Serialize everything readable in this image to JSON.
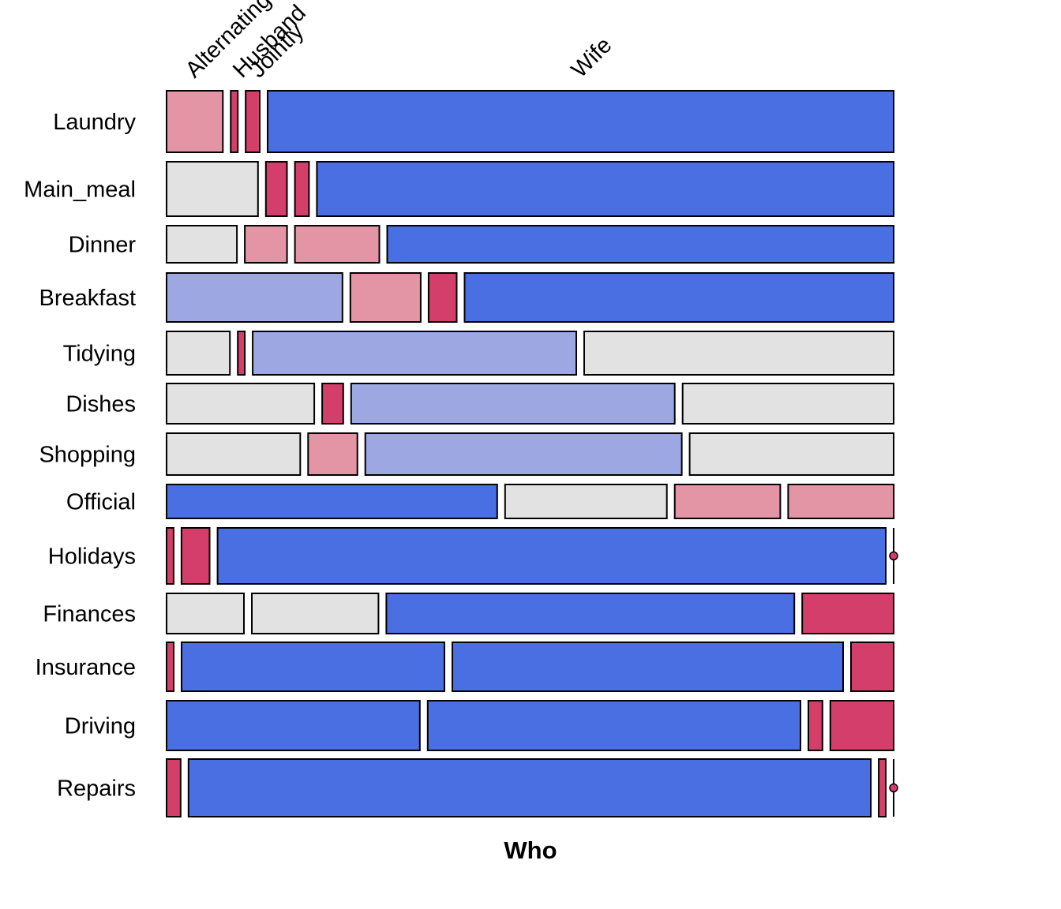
{
  "chart_data": {
    "type": "mosaic",
    "xlabel": "Who",
    "ylabel": "",
    "title": "",
    "columns": [
      "Alternating",
      "Husband",
      "Jointly",
      "Wife"
    ],
    "rows": [
      "Laundry",
      "Main_meal",
      "Dinner",
      "Breakfast",
      "Tidying",
      "Dishes",
      "Shopping",
      "Official",
      "Holidays",
      "Finances",
      "Insurance",
      "Driving",
      "Repairs"
    ],
    "proportions": {
      "Laundry": [
        0.08,
        0.01,
        0.02,
        0.89
      ],
      "Main_meal": [
        0.13,
        0.03,
        0.02,
        0.82
      ],
      "Dinner": [
        0.1,
        0.06,
        0.12,
        0.72
      ],
      "Breakfast": [
        0.25,
        0.1,
        0.04,
        0.61
      ],
      "Tidying": [
        0.09,
        0.01,
        0.46,
        0.44
      ],
      "Dishes": [
        0.21,
        0.03,
        0.46,
        0.3
      ],
      "Shopping": [
        0.19,
        0.07,
        0.45,
        0.29
      ],
      "Official": [
        0.47,
        0.23,
        0.15,
        0.15
      ],
      "Holidays": [
        0.01,
        0.04,
        0.95,
        0.0
      ],
      "Finances": [
        0.11,
        0.18,
        0.58,
        0.13
      ],
      "Insurance": [
        0.01,
        0.37,
        0.55,
        0.06
      ],
      "Driving": [
        0.36,
        0.53,
        0.02,
        0.09
      ],
      "Repairs": [
        0.02,
        0.97,
        0.01,
        0.0
      ]
    },
    "tile_shading": {
      "Laundry": [
        "pos-light",
        "pos-strong",
        "pos-strong",
        "neg-strong"
      ],
      "Main_meal": [
        "neutral",
        "pos-strong",
        "pos-strong",
        "neg-strong"
      ],
      "Dinner": [
        "neutral",
        "pos-light",
        "pos-light",
        "neg-strong"
      ],
      "Breakfast": [
        "neg-light",
        "pos-light",
        "pos-strong",
        "neg-strong"
      ],
      "Tidying": [
        "neutral",
        "pos-strong",
        "neg-light",
        "neutral"
      ],
      "Dishes": [
        "neutral",
        "pos-strong",
        "neg-light",
        "neutral"
      ],
      "Shopping": [
        "neutral",
        "pos-light",
        "neg-light",
        "neutral"
      ],
      "Official": [
        "neg-strong",
        "neutral",
        "pos-light",
        "pos-light"
      ],
      "Holidays": [
        "pos-strong",
        "pos-strong",
        "neg-strong",
        "pos-strong"
      ],
      "Finances": [
        "neutral",
        "neutral",
        "neg-strong",
        "pos-strong"
      ],
      "Insurance": [
        "pos-strong",
        "neg-strong",
        "neg-strong",
        "pos-strong"
      ],
      "Driving": [
        "neg-strong",
        "neg-strong",
        "pos-strong",
        "pos-strong"
      ],
      "Repairs": [
        "pos-strong",
        "neg-strong",
        "pos-strong",
        "pos-strong"
      ]
    },
    "colors": {
      "neg-strong": "#4a6fe3",
      "neg-light": "#9da8e2",
      "neutral": "#e2e2e2",
      "pos-light": "#e495a5",
      "pos-strong": "#d33f6a"
    }
  }
}
